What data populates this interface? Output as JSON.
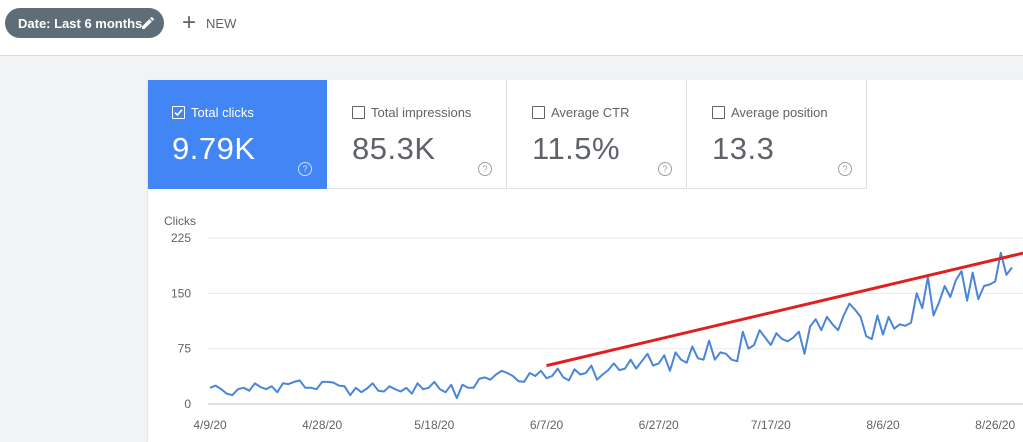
{
  "toolbar": {
    "date_filter_label": "Date: Last 6 months",
    "new_label": "NEW"
  },
  "metrics": [
    {
      "label": "Total clicks",
      "value": "9.79K",
      "checked": true
    },
    {
      "label": "Total impressions",
      "value": "85.3K",
      "checked": false
    },
    {
      "label": "Average CTR",
      "value": "11.5%",
      "checked": false
    },
    {
      "label": "Average position",
      "value": "13.3",
      "checked": false
    }
  ],
  "colors": {
    "accent": "#4285f4",
    "series_line": "#4a86d8",
    "annotation_arrow": "#e02020",
    "chip": "#5f6d76"
  },
  "chart_data": {
    "type": "line",
    "ylabel": "Clicks",
    "ylim": [
      0,
      225
    ],
    "y_ticks": [
      0,
      75,
      150,
      225
    ],
    "x_tick_labels": [
      "4/9/20",
      "4/28/20",
      "5/18/20",
      "6/7/20",
      "6/27/20",
      "7/17/20",
      "8/6/20",
      "8/26/20"
    ],
    "grid": true,
    "annotation": {
      "type": "trend-arrow",
      "from": {
        "x": "6/7/20",
        "y": 52
      },
      "to": {
        "x": "9/8/20",
        "y": 218
      }
    },
    "series": [
      {
        "values": [
          22,
          25,
          20,
          14,
          12,
          20,
          22,
          18,
          28,
          23,
          20,
          24,
          16,
          28,
          27,
          30,
          32,
          22,
          22,
          20,
          30,
          30,
          29,
          25,
          24,
          12,
          22,
          16,
          21,
          28,
          18,
          17,
          24,
          20,
          17,
          22,
          14,
          28,
          20,
          22,
          30,
          20,
          16,
          26,
          8,
          26,
          22,
          22,
          34,
          36,
          33,
          40,
          45,
          42,
          38,
          31,
          30,
          42,
          38,
          45,
          35,
          38,
          48,
          36,
          32,
          47,
          40,
          42,
          52,
          33,
          40,
          46,
          55,
          46,
          48,
          60,
          48,
          58,
          68,
          52,
          55,
          66,
          45,
          70,
          60,
          56,
          78,
          62,
          60,
          86,
          60,
          70,
          68,
          60,
          58,
          98,
          75,
          80,
          100,
          90,
          80,
          96,
          88,
          85,
          90,
          98,
          68,
          105,
          115,
          100,
          118,
          108,
          100,
          120,
          136,
          128,
          118,
          92,
          88,
          120,
          94,
          118,
          102,
          108,
          106,
          110,
          150,
          130,
          172,
          120,
          138,
          160,
          145,
          168,
          180,
          140,
          178,
          142,
          160,
          162,
          166,
          205,
          175,
          185
        ]
      }
    ]
  }
}
